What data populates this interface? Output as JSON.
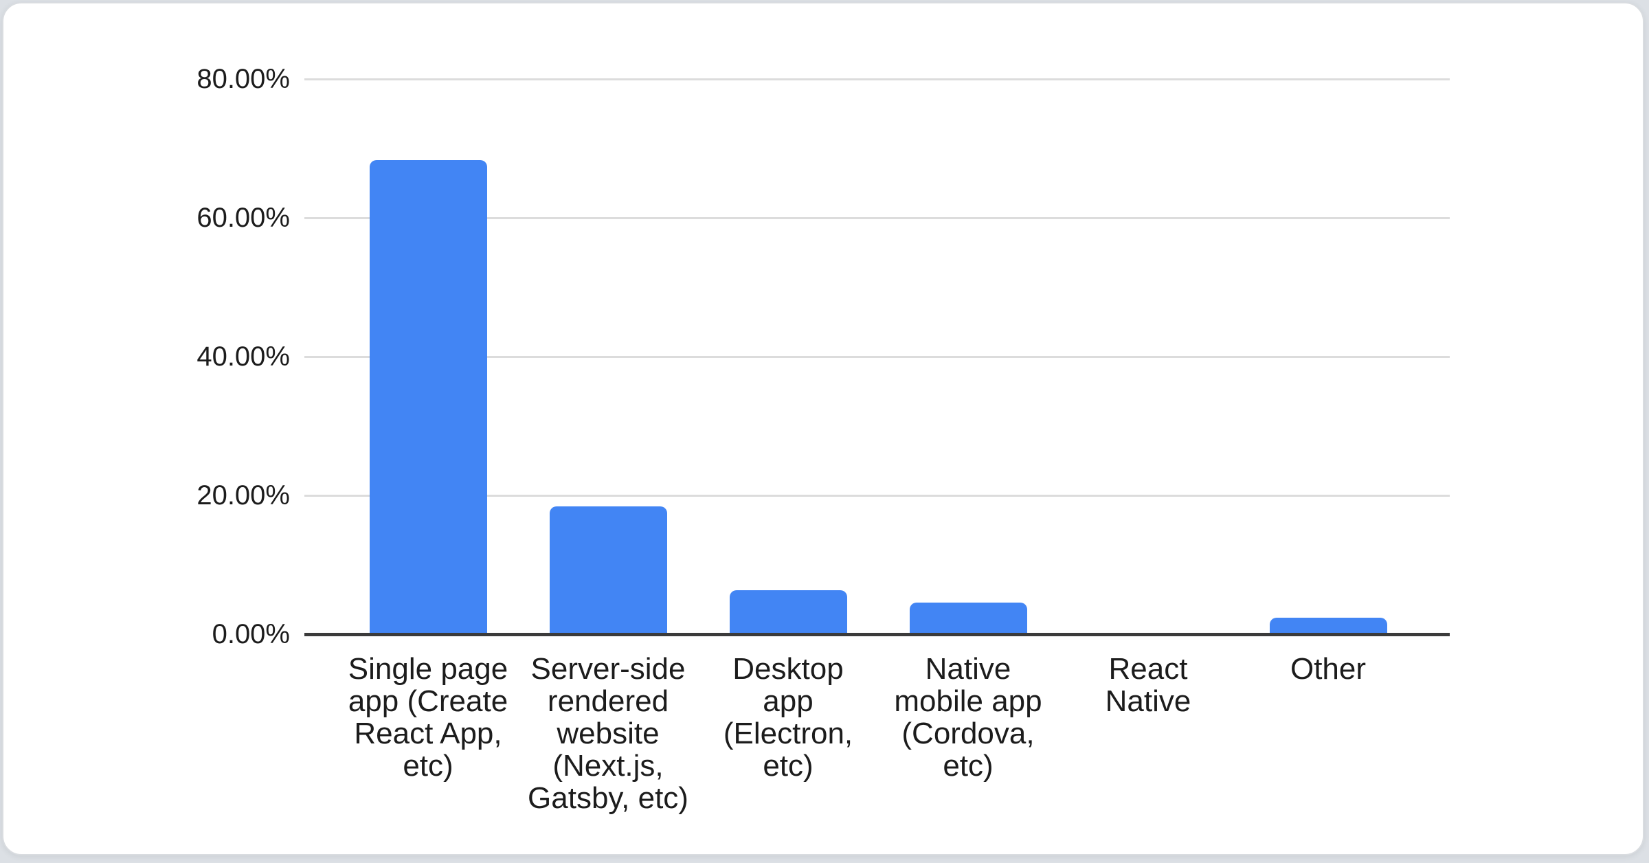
{
  "page": {
    "background_color": "#dce0e5",
    "card": {
      "background_color": "#ffffff",
      "border_color": "#d9dce0"
    }
  },
  "chart_data": {
    "type": "bar",
    "orientation": "vertical",
    "categories": [
      "Single page app (Create React App, etc)",
      "Server-side rendered website (Next.js, Gatsby, etc)",
      "Desktop app (Electron, etc)",
      "Native mobile app (Cordova, etc)",
      "React Native",
      "Other"
    ],
    "category_label_lines": [
      "Single page\napp (Create\nReact App,\netc)",
      "Server-side\nrendered\nwebsite\n(Next.js,\nGatsby, etc)",
      "Desktop\napp\n(Electron,\netc)",
      "Native\nmobile app\n(Cordova,\netc)",
      "React\nNative",
      "Other"
    ],
    "values": [
      68.3,
      18.4,
      6.3,
      4.6,
      0.0,
      2.4
    ],
    "value_unit": "%",
    "ylim": [
      0,
      80
    ],
    "y_axis": {
      "ticks": [
        {
          "label": "80.00%",
          "value": 80
        },
        {
          "label": "60.00%",
          "value": 60
        },
        {
          "label": "40.00%",
          "value": 40
        },
        {
          "label": "20.00%",
          "value": 20
        },
        {
          "label": "0.00%",
          "value": 0
        }
      ]
    },
    "grid": true,
    "legend": "none",
    "xlabel": "",
    "ylabel": "",
    "bar_color": "#4285F4",
    "axis_line_color": "#3b3b3b",
    "gridline_color": "#dcdcdc",
    "label_color": "#1c1c1c"
  }
}
